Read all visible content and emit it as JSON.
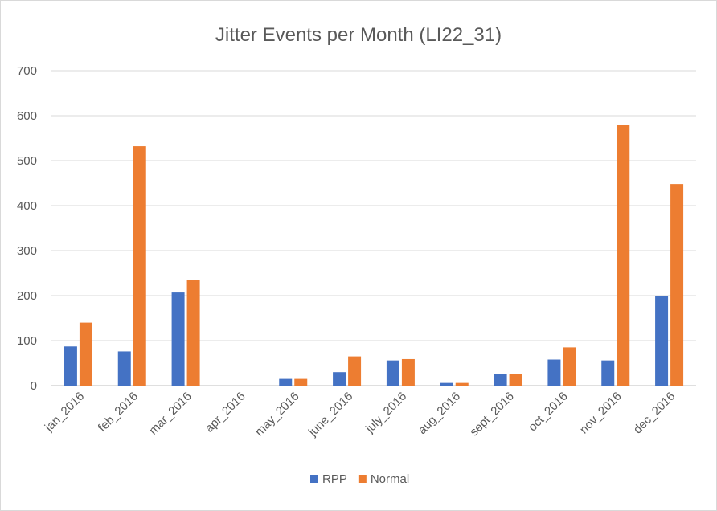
{
  "chart_data": {
    "type": "bar",
    "title": "Jitter Events per Month (LI22_31)",
    "xlabel": "",
    "ylabel": "",
    "ylim": [
      0,
      700
    ],
    "yticks": [
      "0",
      "100",
      "200",
      "300",
      "400",
      "500",
      "600",
      "700"
    ],
    "grid": true,
    "legend_position": "bottom",
    "categories": [
      "jan_2016",
      "feb_2016",
      "mar_2016",
      "apr_2016",
      "may_2016",
      "june_2016",
      "july_2016",
      "aug_2016",
      "sept_2016",
      "oct_2016",
      "nov_2016",
      "dec_2016"
    ],
    "series": [
      {
        "name": "RPP",
        "color": "#4472c4",
        "values": [
          87,
          76,
          207,
          0,
          15,
          30,
          56,
          6,
          26,
          58,
          56,
          200
        ]
      },
      {
        "name": "Normal",
        "color": "#ed7d31",
        "values": [
          140,
          532,
          235,
          0,
          15,
          65,
          59,
          6,
          26,
          85,
          580,
          448
        ]
      }
    ]
  }
}
